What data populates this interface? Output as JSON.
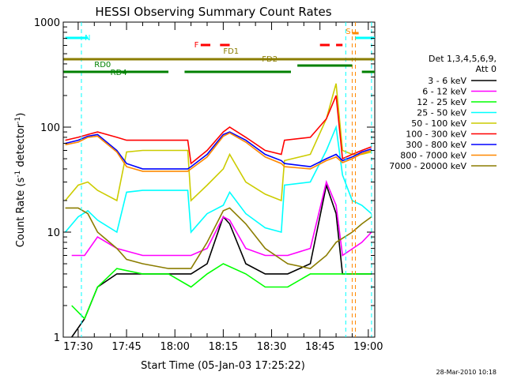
{
  "chart_data": {
    "type": "line",
    "title": "HESSI Observing Summary Count Rates",
    "xlabel": "Start Time (05-Jan-03 17:25:22)",
    "ylabel_main": "Count Rate (s",
    "ylabel_sup1": "-1",
    "ylabel_mid": " detector",
    "ylabel_sup2": "-1",
    "ylabel_end": ")",
    "ylabel": "Count Rate (s-1 detector-1)",
    "yscale": "log",
    "ylim": [
      1,
      1000
    ],
    "xlim": [
      "17:25:22",
      "19:02:00"
    ],
    "x_ticks": [
      "17:30",
      "17:45",
      "18:00",
      "18:15",
      "18:30",
      "18:45",
      "19:00"
    ],
    "y_ticks": [
      "1",
      "10",
      "100",
      "1000"
    ],
    "legend": {
      "placement": "right",
      "header_line1": "Det 1,3,4,5,6,9,",
      "header_line2": "Att 0"
    },
    "footer_date": "28-Mar-2010 10:18",
    "series": [
      {
        "name": "3 - 6 keV",
        "color": "#000000",
        "x": [
          "17:28",
          "17:32",
          "17:36",
          "17:42",
          "17:50",
          "17:58",
          "18:05",
          "18:10",
          "18:15",
          "18:17",
          "18:22",
          "18:28",
          "18:35",
          "18:42",
          "18:47",
          "18:50",
          "18:52",
          "18:58",
          "19:01"
        ],
        "values": [
          1,
          1.5,
          3,
          4,
          4,
          4,
          4,
          5,
          14,
          12,
          5,
          4,
          4,
          5,
          28,
          15,
          4,
          4,
          4
        ]
      },
      {
        "name": "6 - 12 keV",
        "color": "#ff00ff",
        "x": [
          "17:28",
          "17:32",
          "17:36",
          "17:42",
          "17:50",
          "17:58",
          "18:05",
          "18:10",
          "18:15",
          "18:17",
          "18:22",
          "18:28",
          "18:35",
          "18:42",
          "18:47",
          "18:50",
          "18:52",
          "18:58",
          "19:01"
        ],
        "values": [
          6,
          6,
          9,
          7,
          6,
          6,
          6,
          7,
          14,
          13,
          7,
          6,
          6,
          7,
          30,
          18,
          6,
          8,
          10
        ]
      },
      {
        "name": "12 - 25 keV",
        "color": "#00ff00",
        "x": [
          "17:28",
          "17:32",
          "17:36",
          "17:42",
          "17:50",
          "17:58",
          "18:05",
          "18:10",
          "18:15",
          "18:22",
          "18:28",
          "18:35",
          "18:42",
          "18:47",
          "18:50",
          "18:52",
          "18:58",
          "19:01"
        ],
        "values": [
          2,
          1.5,
          3,
          4.5,
          4,
          4,
          3,
          4,
          5,
          4,
          3,
          3,
          4,
          4,
          4,
          4,
          4,
          4
        ]
      },
      {
        "name": "25 - 50 keV",
        "color": "#00ffff",
        "x": [
          "17:26",
          "17:30",
          "17:33",
          "17:36",
          "17:42",
          "17:45",
          "17:50",
          "17:58",
          "18:04",
          "18:05",
          "18:10",
          "18:15",
          "18:17",
          "18:22",
          "18:28",
          "18:33",
          "18:34",
          "18:42",
          "18:47",
          "18:50",
          "18:52",
          "18:55",
          "18:58",
          "19:01"
        ],
        "values": [
          10,
          14,
          16,
          13,
          10,
          24,
          25,
          25,
          25,
          10,
          15,
          18,
          24,
          15,
          11,
          10,
          28,
          30,
          60,
          100,
          35,
          20,
          18,
          15
        ]
      },
      {
        "name": "50 - 100 keV",
        "color": "#cccc00",
        "x": [
          "17:26",
          "17:30",
          "17:33",
          "17:36",
          "17:42",
          "17:45",
          "17:50",
          "17:58",
          "18:04",
          "18:05",
          "18:10",
          "18:15",
          "18:17",
          "18:22",
          "18:28",
          "18:33",
          "18:34",
          "18:42",
          "18:47",
          "18:50",
          "18:52",
          "18:55",
          "18:58",
          "19:01"
        ],
        "values": [
          20,
          28,
          30,
          25,
          20,
          58,
          60,
          60,
          60,
          20,
          28,
          40,
          55,
          30,
          23,
          20,
          48,
          55,
          120,
          260,
          60,
          55,
          55,
          58
        ]
      },
      {
        "name": "100 - 300 keV",
        "color": "#ff0000",
        "x": [
          "17:26",
          "17:30",
          "17:33",
          "17:36",
          "17:42",
          "17:45",
          "17:50",
          "17:58",
          "18:04",
          "18:05",
          "18:10",
          "18:15",
          "18:17",
          "18:22",
          "18:28",
          "18:33",
          "18:34",
          "18:42",
          "18:47",
          "18:50",
          "18:52",
          "18:55",
          "18:58",
          "19:01"
        ],
        "values": [
          75,
          80,
          85,
          90,
          80,
          75,
          75,
          75,
          75,
          45,
          60,
          90,
          100,
          80,
          60,
          55,
          75,
          80,
          120,
          200,
          50,
          55,
          60,
          65
        ]
      },
      {
        "name": "300 - 800 keV",
        "color": "#0000ff",
        "x": [
          "17:26",
          "17:30",
          "17:33",
          "17:36",
          "17:42",
          "17:45",
          "17:50",
          "17:58",
          "18:04",
          "18:05",
          "18:10",
          "18:15",
          "18:17",
          "18:22",
          "18:28",
          "18:33",
          "18:34",
          "18:42",
          "18:47",
          "18:50",
          "18:52",
          "18:55",
          "18:58",
          "19:01"
        ],
        "values": [
          70,
          75,
          82,
          85,
          60,
          45,
          40,
          40,
          40,
          42,
          55,
          85,
          90,
          75,
          55,
          48,
          45,
          42,
          50,
          55,
          48,
          52,
          58,
          62
        ]
      },
      {
        "name": "800 - 7000 keV",
        "color": "#ff8800",
        "x": [
          "17:26",
          "17:30",
          "17:33",
          "17:36",
          "17:42",
          "17:45",
          "17:50",
          "17:58",
          "18:04",
          "18:05",
          "18:10",
          "18:15",
          "18:17",
          "18:22",
          "18:28",
          "18:33",
          "18:34",
          "18:42",
          "18:47",
          "18:50",
          "18:52",
          "18:55",
          "18:58",
          "19:01"
        ],
        "values": [
          68,
          72,
          80,
          82,
          58,
          42,
          38,
          38,
          38,
          40,
          52,
          82,
          88,
          72,
          52,
          45,
          42,
          40,
          48,
          52,
          46,
          50,
          56,
          60
        ]
      },
      {
        "name": "7000 - 20000 keV",
        "color": "#8b7d00",
        "x": [
          "17:26",
          "17:30",
          "17:33",
          "17:36",
          "17:42",
          "17:45",
          "17:50",
          "17:58",
          "18:05",
          "18:10",
          "18:15",
          "18:17",
          "18:22",
          "18:28",
          "18:35",
          "18:42",
          "18:47",
          "18:50",
          "18:55",
          "18:58",
          "19:01"
        ],
        "values": [
          17,
          17,
          15,
          10,
          7,
          5.5,
          5,
          4.5,
          4.5,
          8,
          16,
          17,
          12,
          7,
          5,
          4.5,
          6,
          8,
          10,
          12,
          14
        ]
      }
    ],
    "annotations": {
      "N": "N",
      "S": "S",
      "F": "F",
      "FD1": "FD1",
      "FD2": "FD2",
      "RD0": "RD0",
      "RD4": "RD4"
    }
  }
}
